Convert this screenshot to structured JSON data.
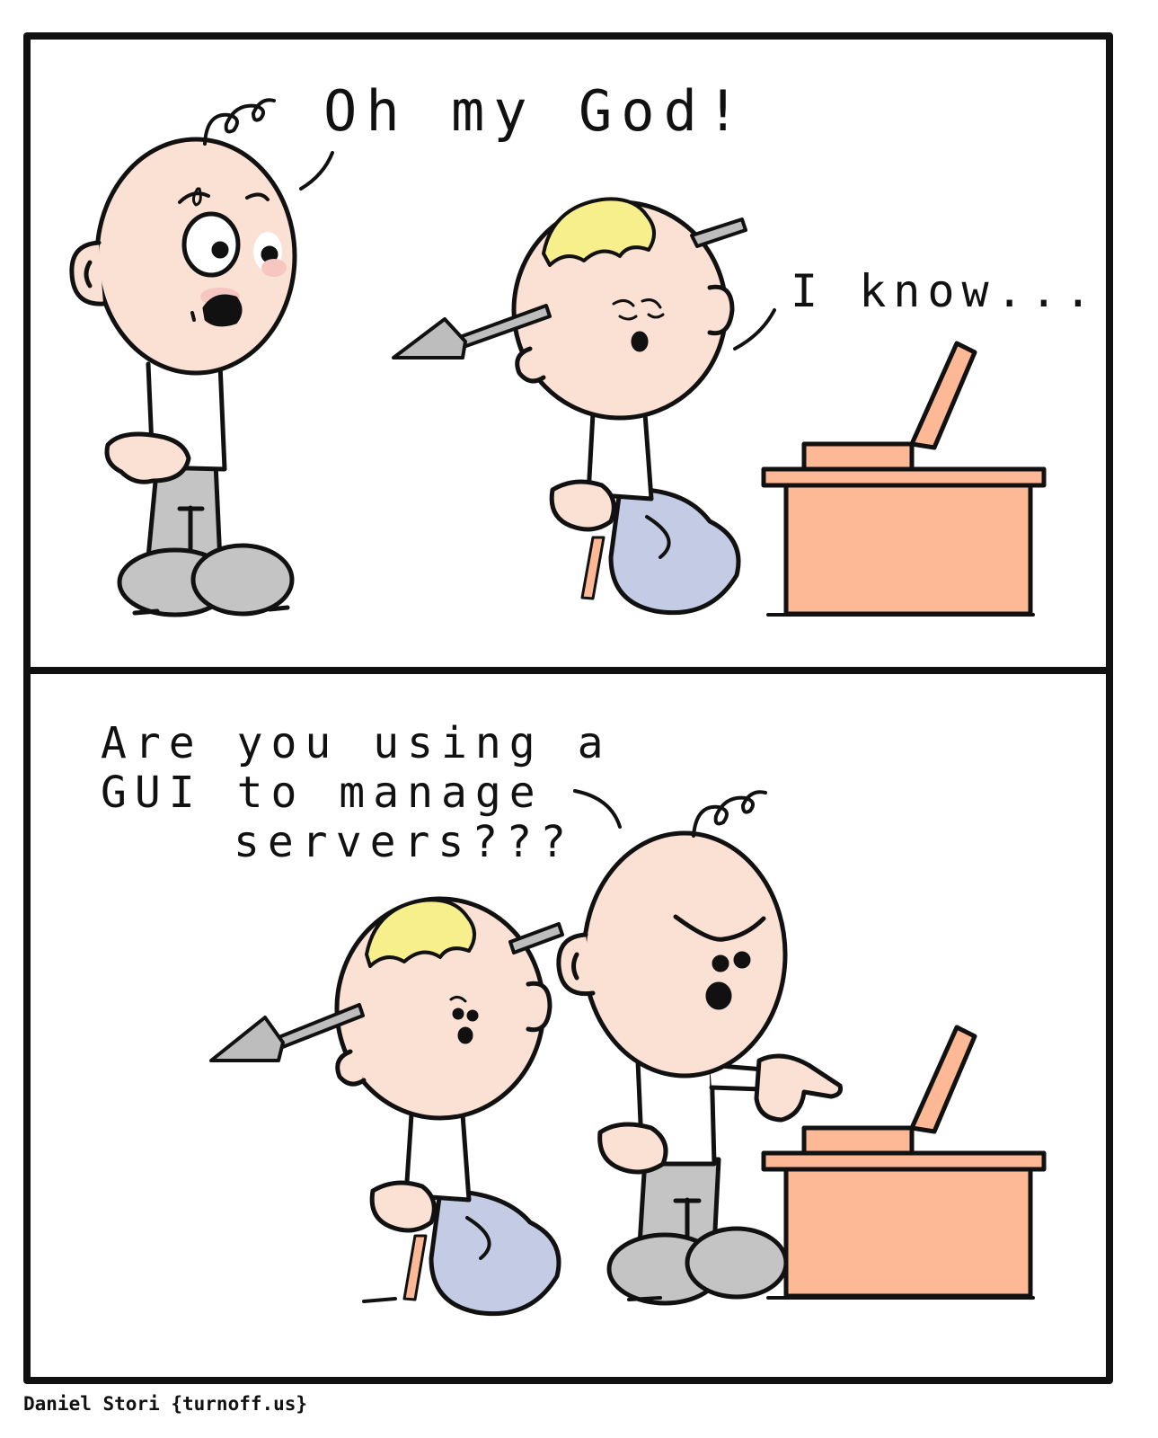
{
  "panel1": {
    "speech_left": "Oh my God!",
    "speech_right": "I know..."
  },
  "panel2": {
    "speech_line1": "Are you using a",
    "speech_line2": "GUI to manage",
    "speech_line3": "servers???"
  },
  "credit": "Daniel Stori {turnoff.us}",
  "colors": {
    "skin": "#fbe0d4",
    "hair": "#f7ef8c",
    "pants_gray": "#c4c4c4",
    "pants_blue": "#c3cce4",
    "desk": "#fdb996",
    "arrow": "#bdbdbd",
    "ink": "#111111"
  }
}
